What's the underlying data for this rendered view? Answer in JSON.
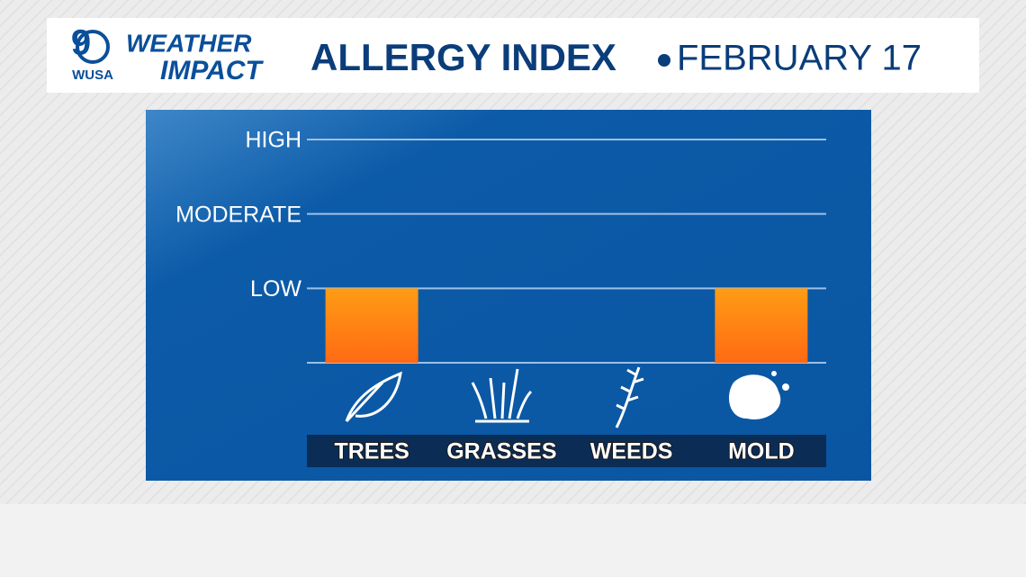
{
  "header": {
    "logo_number": "9",
    "logo_text": "WUSA",
    "brand_top": "WEATHER",
    "brand_bottom": "IMPACT"
  },
  "chart_data": {
    "type": "bar",
    "title": "ALLERGY INDEX",
    "subtitle": "FEBRUARY 17",
    "categories": [
      "TREES",
      "GRASSES",
      "WEEDS",
      "MOLD"
    ],
    "values": [
      1,
      0,
      0,
      1
    ],
    "color": "#ff8a12",
    "ylim": [
      0,
      3
    ],
    "yticks": [
      {
        "value": 1,
        "label": "LOW"
      },
      {
        "value": 2,
        "label": "MODERATE"
      },
      {
        "value": 3,
        "label": "HIGH"
      }
    ],
    "grid": true
  }
}
